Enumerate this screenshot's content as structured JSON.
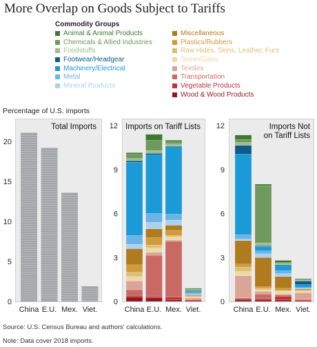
{
  "title": "More Overlap on Goods Subject to Tariffs",
  "legend": {
    "title": "Commodity Groups",
    "items": [
      {
        "name": "Animal & Animal Products",
        "color": "#3d7a2e"
      },
      {
        "name": "Chemicals & Allied Industries",
        "color": "#6e9a5c"
      },
      {
        "name": "Foodstuffs",
        "color": "#a0bc8e"
      },
      {
        "name": "Footwear/Headgear",
        "color": "#0b5c8a"
      },
      {
        "name": "Machinery/Electrical",
        "color": "#1a9bd7"
      },
      {
        "name": "Metal",
        "color": "#6cb3e6"
      },
      {
        "name": "Mineral Products",
        "color": "#a9d2f0"
      },
      {
        "name": "Miscellaneous",
        "color": "#b07a1e"
      },
      {
        "name": "Plastics/Rubbers",
        "color": "#d19a3a"
      },
      {
        "name": "Raw Hides, Skins, Leather, Furs",
        "color": "#dcbf72"
      },
      {
        "name": "Stone/Glass",
        "color": "#ecd9a8"
      },
      {
        "name": "Textiles",
        "color": "#dba497"
      },
      {
        "name": "Transportation",
        "color": "#c96a62"
      },
      {
        "name": "Vegetable Products",
        "color": "#c0323a"
      },
      {
        "name": "Wood & Wood Products",
        "color": "#8e1a1f"
      }
    ]
  },
  "y_axis_label": "Percentage of U.S. imports",
  "source": "Source: U.S. Census Bureau and authors' calculations.",
  "note": "Note: Data cover 2018 imports.",
  "chart_data": [
    {
      "type": "bar",
      "title": "Total Imports",
      "categories": [
        "China",
        "E.U.",
        "Mex.",
        "Viet."
      ],
      "ylim": [
        0,
        22
      ],
      "yticks": [
        0,
        5,
        10,
        15,
        20
      ],
      "series": [
        {
          "values": [
            21.1,
            19.2,
            13.6,
            1.9
          ],
          "color": "#a3a5a8"
        }
      ]
    },
    {
      "type": "bar",
      "stacked": true,
      "title": "Imports on Tariff Lists",
      "categories": [
        "China",
        "E.U.",
        "Mex.",
        "Viet."
      ],
      "ylim": [
        0,
        12
      ],
      "yticks": [
        0,
        3,
        6,
        9,
        12
      ],
      "series": [
        {
          "name": "Wood & Wood Products",
          "color": "#8e1a1f",
          "values": [
            0.3,
            0.25,
            0.1,
            0.05
          ]
        },
        {
          "name": "Vegetable Products",
          "color": "#c0323a",
          "values": [
            0.1,
            0.1,
            0.2,
            0.05
          ]
        },
        {
          "name": "Transportation",
          "color": "#c96a62",
          "values": [
            0.4,
            2.8,
            3.8,
            0.05
          ]
        },
        {
          "name": "Textiles",
          "color": "#dba497",
          "values": [
            0.6,
            0.2,
            0.1,
            0.1
          ]
        },
        {
          "name": "Stone/Glass",
          "color": "#ecd9a8",
          "values": [
            0.3,
            0.3,
            0.2,
            0.05
          ]
        },
        {
          "name": "Raw Hides, Skins, Leather, Furs",
          "color": "#dcbf72",
          "values": [
            0.3,
            0.2,
            0.1,
            0.05
          ]
        },
        {
          "name": "Plastics/Rubbers",
          "color": "#d19a3a",
          "values": [
            0.5,
            0.5,
            0.35,
            0.05
          ]
        },
        {
          "name": "Miscellaneous",
          "color": "#b07a1e",
          "values": [
            1.1,
            0.6,
            0.35,
            0.05
          ]
        },
        {
          "name": "Mineral Products",
          "color": "#a9d2f0",
          "values": [
            0.3,
            0.45,
            0.35,
            0.05
          ]
        },
        {
          "name": "Metal",
          "color": "#6cb3e6",
          "values": [
            0.6,
            0.6,
            0.4,
            0.1
          ]
        },
        {
          "name": "Machinery/Electrical",
          "color": "#1a9bd7",
          "values": [
            5.0,
            4.0,
            4.6,
            0.1
          ]
        },
        {
          "name": "Footwear/Headgear",
          "color": "#0b5c8a",
          "values": [
            0.1,
            0.1,
            0.05,
            0.05
          ]
        },
        {
          "name": "Foodstuffs",
          "color": "#a0bc8e",
          "values": [
            0.15,
            0.2,
            0.15,
            0.05
          ]
        },
        {
          "name": "Chemicals & Allied Industries",
          "color": "#6e9a5c",
          "values": [
            0.3,
            0.7,
            0.15,
            0.05
          ]
        },
        {
          "name": "Animal & Animal Products",
          "color": "#3d7a2e",
          "values": [
            0.1,
            0.4,
            0.1,
            0.05
          ]
        }
      ]
    },
    {
      "type": "bar",
      "stacked": true,
      "title": "Imports Not on Tariff Lists",
      "title_lines": [
        "Imports Not",
        "on Tariff Lists"
      ],
      "categories": [
        "China",
        "E.U.",
        "Mex.",
        "Viet."
      ],
      "ylim": [
        0,
        12
      ],
      "yticks": [
        0,
        3,
        6,
        9,
        12
      ],
      "series": [
        {
          "name": "Wood & Wood Products",
          "color": "#8e1a1f",
          "values": [
            0.1,
            0.1,
            0.1,
            0.05
          ]
        },
        {
          "name": "Vegetable Products",
          "color": "#c0323a",
          "values": [
            0.1,
            0.1,
            0.25,
            0.05
          ]
        },
        {
          "name": "Transportation",
          "color": "#c96a62",
          "values": [
            0.05,
            0.3,
            0.1,
            0.05
          ]
        },
        {
          "name": "Textiles",
          "color": "#dba497",
          "values": [
            1.5,
            0.2,
            0.05,
            0.45
          ]
        },
        {
          "name": "Stone/Glass",
          "color": "#ecd9a8",
          "values": [
            0.3,
            0.1,
            0.2,
            0.1
          ]
        },
        {
          "name": "Raw Hides, Skins, Leather, Furs",
          "color": "#dcbf72",
          "values": [
            0.3,
            0.1,
            0.05,
            0.05
          ]
        },
        {
          "name": "Plastics/Rubbers",
          "color": "#d19a3a",
          "values": [
            0.2,
            0.1,
            0.15,
            0.05
          ]
        },
        {
          "name": "Miscellaneous",
          "color": "#b07a1e",
          "values": [
            1.6,
            2.0,
            0.8,
            0.05
          ]
        },
        {
          "name": "Mineral Products",
          "color": "#a9d2f0",
          "values": [
            0.1,
            0.25,
            0.2,
            0.05
          ]
        },
        {
          "name": "Metal",
          "color": "#6cb3e6",
          "values": [
            0.3,
            0.2,
            0.2,
            0.05
          ]
        },
        {
          "name": "Machinery/Electrical",
          "color": "#1a9bd7",
          "values": [
            5.5,
            0.3,
            0.35,
            0.2
          ]
        },
        {
          "name": "Footwear/Headgear",
          "color": "#0b5c8a",
          "values": [
            0.6,
            0.05,
            0.05,
            0.25
          ]
        },
        {
          "name": "Foodstuffs",
          "color": "#a0bc8e",
          "values": [
            0.2,
            0.2,
            0.1,
            0.05
          ]
        },
        {
          "name": "Chemicals & Allied Industries",
          "color": "#6e9a5c",
          "values": [
            0.2,
            3.9,
            0.05,
            0.05
          ]
        },
        {
          "name": "Animal & Animal Products",
          "color": "#3d7a2e",
          "values": [
            0.3,
            0.1,
            0.15,
            0.05
          ]
        }
      ]
    }
  ]
}
